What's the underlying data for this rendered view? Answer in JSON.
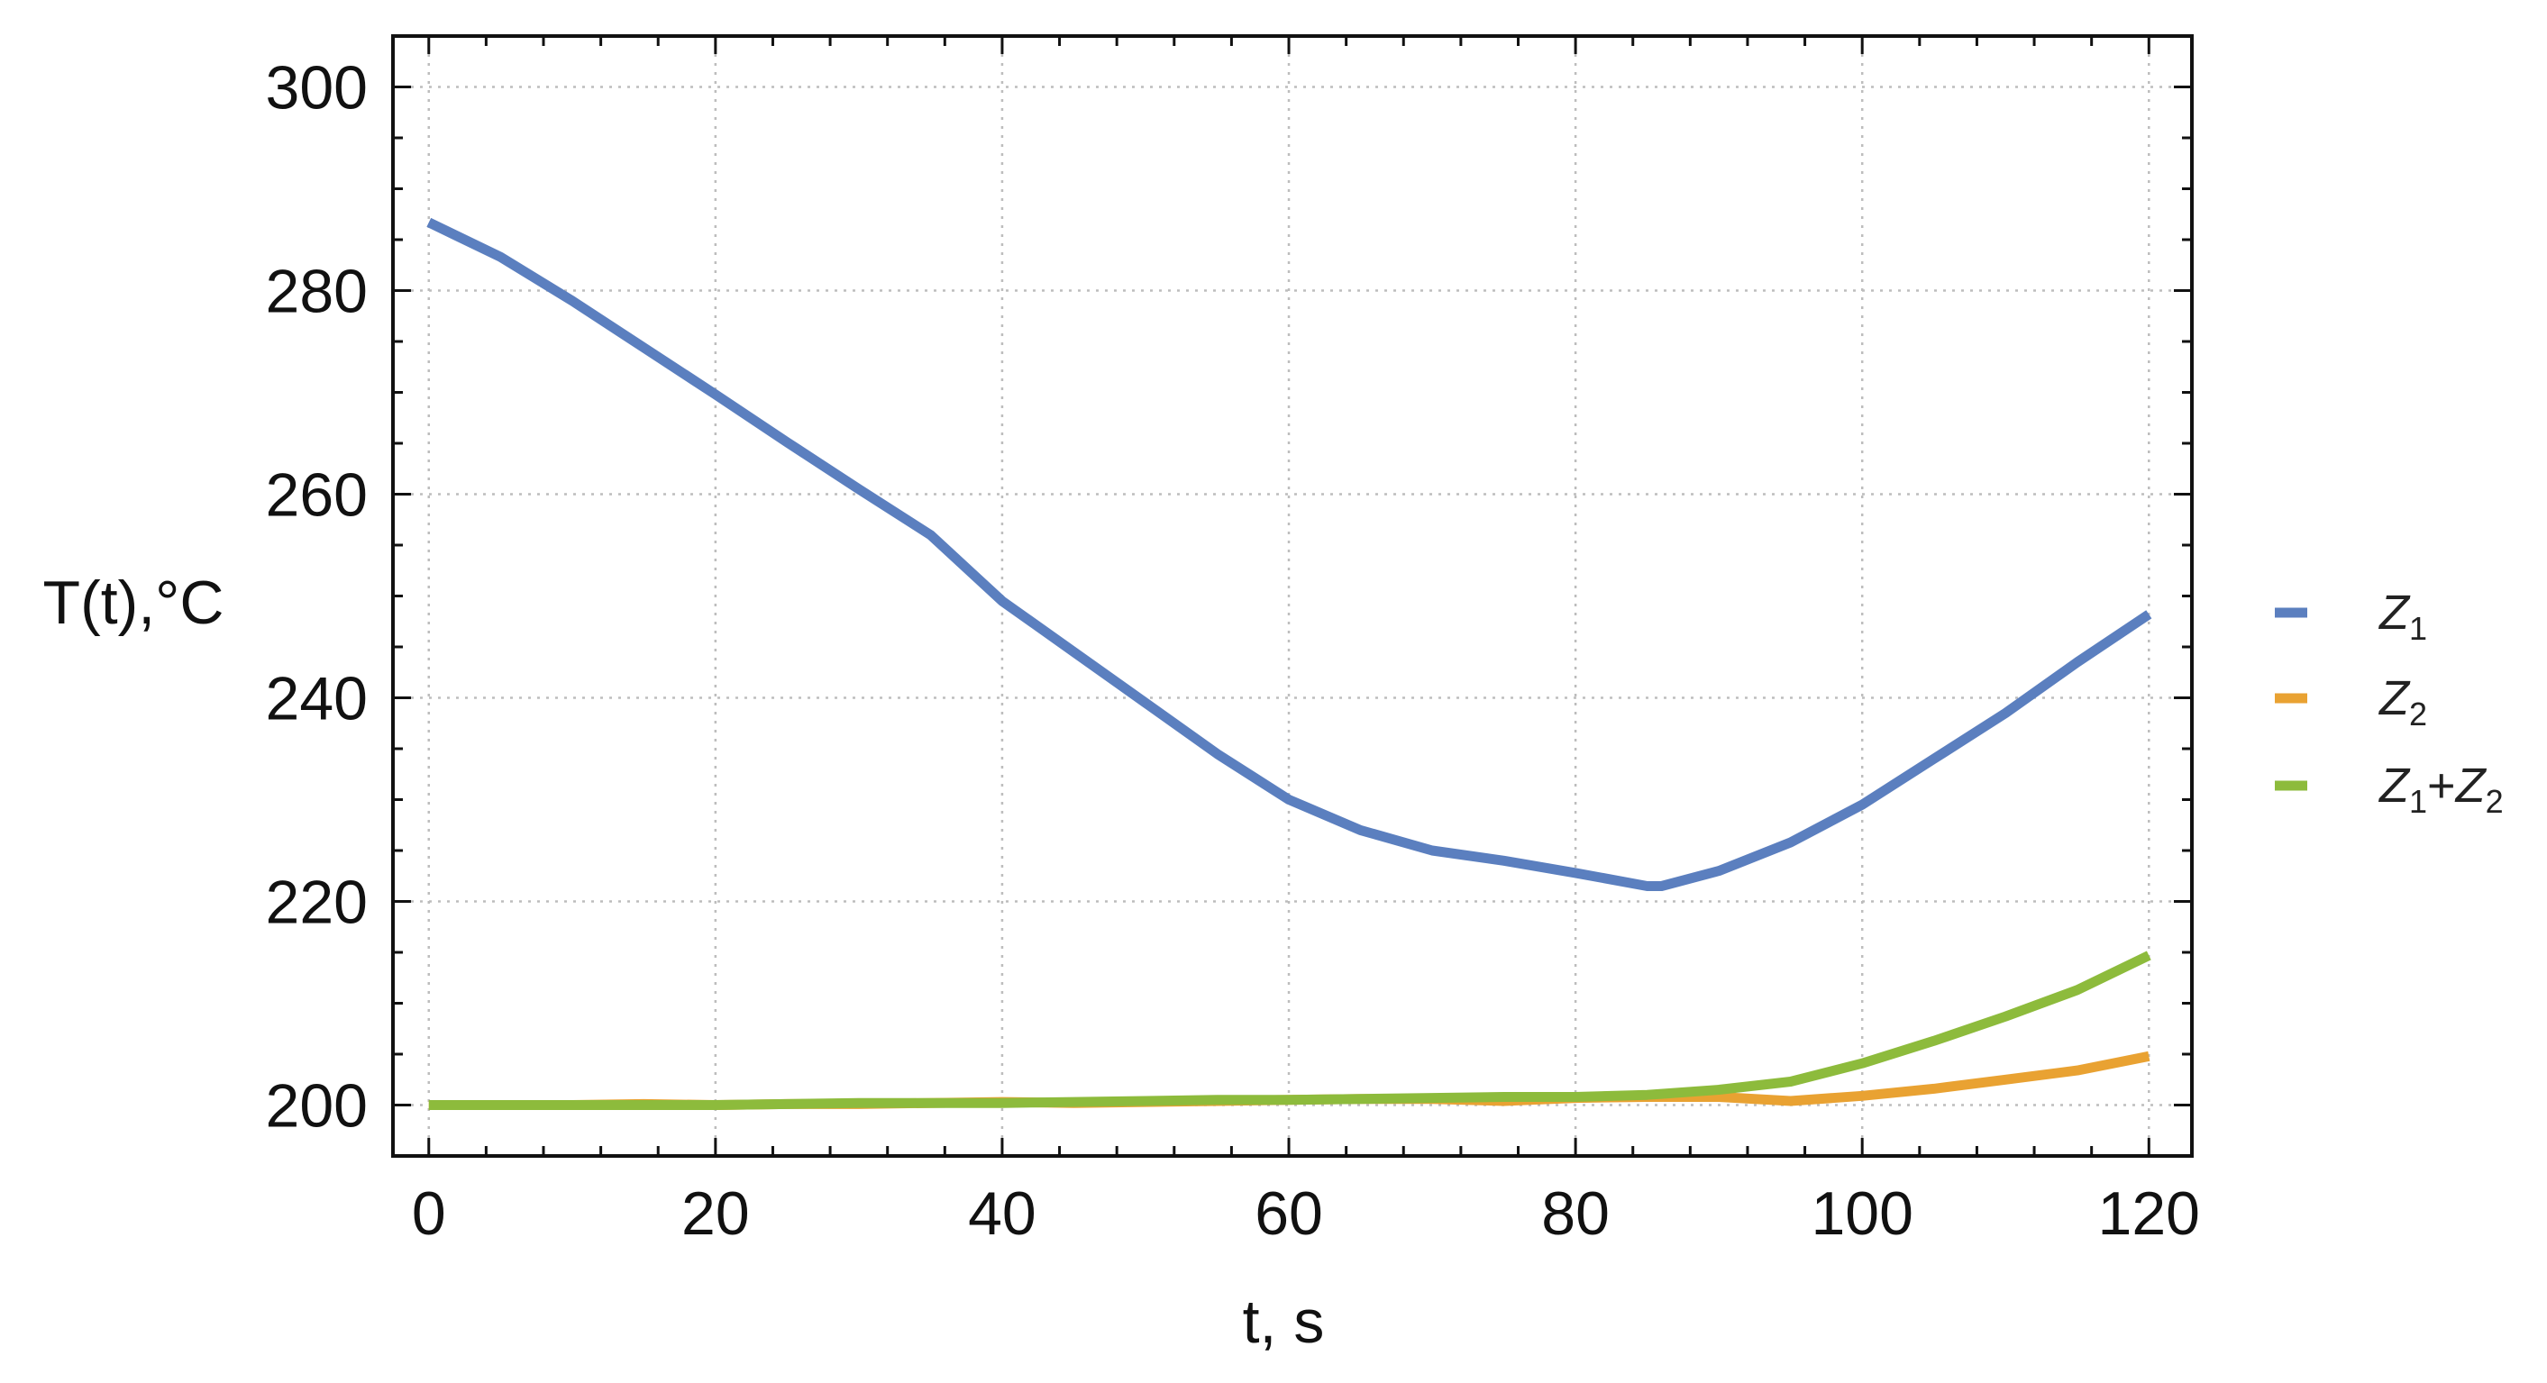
{
  "chart_data": {
    "type": "line",
    "title": "",
    "xlabel": "t, s",
    "ylabel": "T(t),°C",
    "xlim": [
      -2.5,
      123
    ],
    "ylim": [
      195,
      305
    ],
    "xticks": [
      0,
      20,
      40,
      60,
      80,
      100,
      120
    ],
    "yticks": [
      200,
      220,
      240,
      260,
      280,
      300
    ],
    "grid": true,
    "legend_position": "right",
    "colors": {
      "z1": "#5b7fbf",
      "z2": "#e9a232",
      "z1z2": "#8dbb3c"
    },
    "legend": [
      {
        "key": "z1",
        "base1": "Z",
        "sub1": "1",
        "plus": "",
        "base2": "",
        "sub2": ""
      },
      {
        "key": "z2",
        "base1": "Z",
        "sub1": "2",
        "plus": "",
        "base2": "",
        "sub2": ""
      },
      {
        "key": "z1z2",
        "base1": "Z",
        "sub1": "1",
        "plus": "+",
        "base2": "Z",
        "sub2": "2"
      }
    ],
    "x": [
      0,
      5,
      10,
      15,
      20,
      25,
      30,
      35,
      40,
      45,
      50,
      55,
      60,
      65,
      70,
      75,
      80,
      85,
      86,
      90,
      95,
      100,
      105,
      110,
      115,
      120
    ],
    "series": [
      {
        "key": "z1",
        "values": [
          286.7,
          283.3,
          279.0,
          274.4,
          269.8,
          265.1,
          260.5,
          256.0,
          249.5,
          244.5,
          239.5,
          234.5,
          230.0,
          227.0,
          225.0,
          224.0,
          222.8,
          221.5,
          221.5,
          223.0,
          225.8,
          229.5,
          234.0,
          238.5,
          243.5,
          248.2
        ]
      },
      {
        "key": "z2",
        "values": [
          200.0,
          200.0,
          200.0,
          200.1,
          200.0,
          200.1,
          200.1,
          200.2,
          200.3,
          200.2,
          200.3,
          200.4,
          200.5,
          200.6,
          200.6,
          200.4,
          200.7,
          200.8,
          200.8,
          200.8,
          200.4,
          200.9,
          201.6,
          202.5,
          203.4,
          204.8
        ]
      },
      {
        "key": "z1z2",
        "values": [
          200.0,
          200.0,
          200.0,
          200.0,
          200.0,
          200.1,
          200.2,
          200.2,
          200.2,
          200.3,
          200.4,
          200.5,
          200.5,
          200.6,
          200.7,
          200.8,
          200.8,
          201.0,
          201.1,
          201.5,
          202.3,
          204.1,
          206.3,
          208.7,
          211.3,
          214.7
        ]
      }
    ]
  }
}
